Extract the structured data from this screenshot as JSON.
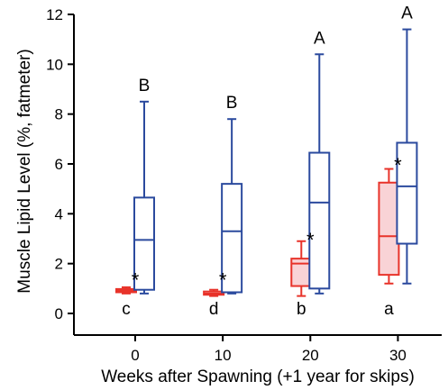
{
  "chart_data": {
    "type": "box",
    "title": "",
    "xlabel": "Weeks after Spawning (+1 year for skips)",
    "ylabel": "Muscle Lipid Level (%, fatmeter)",
    "ylim": [
      0,
      12
    ],
    "xlim": [
      -7,
      35
    ],
    "y_ticks": [
      0,
      2,
      4,
      6,
      8,
      10,
      12
    ],
    "x_ticks": [
      0,
      10,
      20,
      30
    ],
    "grid": false,
    "legend": "none",
    "colors": {
      "red": "#e8332a",
      "red_fill": "#f9d3d6",
      "blue": "#2b4a9e",
      "axis": "#000000"
    },
    "series": [
      {
        "color": "red",
        "boxes": [
          {
            "x": 0,
            "min": 0.8,
            "q1": 0.85,
            "median": 0.92,
            "q3": 0.98,
            "max": 1.05,
            "letter": "c"
          },
          {
            "x": 10,
            "min": 0.7,
            "q1": 0.75,
            "median": 0.8,
            "q3": 0.88,
            "max": 0.95,
            "letter": "d"
          },
          {
            "x": 20,
            "min": 0.7,
            "q1": 1.1,
            "median": 2.0,
            "q3": 2.2,
            "max": 2.9,
            "letter": "b"
          },
          {
            "x": 30,
            "min": 1.2,
            "q1": 1.55,
            "median": 3.1,
            "q3": 5.25,
            "max": 5.8,
            "letter": "a"
          }
        ]
      },
      {
        "color": "blue",
        "boxes": [
          {
            "x": 0,
            "min": 0.8,
            "q1": 0.95,
            "median": 2.95,
            "q3": 4.65,
            "max": 8.5,
            "letter": "B"
          },
          {
            "x": 10,
            "min": 0.8,
            "q1": 0.85,
            "median": 3.3,
            "q3": 5.2,
            "max": 7.8,
            "letter": "B"
          },
          {
            "x": 20,
            "min": 0.8,
            "q1": 1.0,
            "median": 4.45,
            "q3": 6.45,
            "max": 10.4,
            "letter": "A"
          },
          {
            "x": 30,
            "min": 1.2,
            "q1": 2.8,
            "median": 5.1,
            "q3": 6.85,
            "max": 11.4,
            "letter": "A"
          }
        ]
      }
    ],
    "annotations": [
      {
        "text": "*",
        "x": 0,
        "y": 1.5
      },
      {
        "text": "*",
        "x": 10,
        "y": 1.5
      },
      {
        "text": "*",
        "x": 20,
        "y": 3.1
      },
      {
        "text": "*",
        "x": 30,
        "y": 6.1
      }
    ]
  }
}
